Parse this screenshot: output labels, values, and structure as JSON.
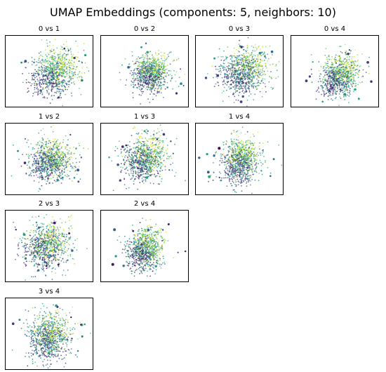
{
  "figure": {
    "title": "UMAP Embeddings (components: 5, neighbors: 10)"
  },
  "chart_data": {
    "type": "scatter",
    "title": "UMAP Embeddings (components: 5, neighbors: 10)",
    "colormap": "viridis (color encodes point order)",
    "colors": {
      "dark": "#440154",
      "purple": "#46327e",
      "blue": "#365c8d",
      "teal": "#277f8e",
      "green": "#1fa187",
      "lightgreen": "#4ac16d",
      "yellowgreen": "#a0da39",
      "yellow": "#fde725"
    },
    "axes_ticks": "none",
    "grid": false,
    "legend": "none",
    "panels": [
      {
        "title": "0 vs 1",
        "x_component": 0,
        "y_component": 1
      },
      {
        "title": "0 vs 2",
        "x_component": 0,
        "y_component": 2
      },
      {
        "title": "0 vs 3",
        "x_component": 0,
        "y_component": 3
      },
      {
        "title": "0 vs 4",
        "x_component": 0,
        "y_component": 4
      },
      {
        "title": "1 vs 2",
        "x_component": 1,
        "y_component": 2
      },
      {
        "title": "1 vs 3",
        "x_component": 1,
        "y_component": 3
      },
      {
        "title": "1 vs 4",
        "x_component": 1,
        "y_component": 4
      },
      {
        "title": "2 vs 3",
        "x_component": 2,
        "y_component": 3
      },
      {
        "title": "2 vs 4",
        "x_component": 2,
        "y_component": 4
      },
      {
        "title": "3 vs 4",
        "x_component": 3,
        "y_component": 4
      }
    ]
  }
}
